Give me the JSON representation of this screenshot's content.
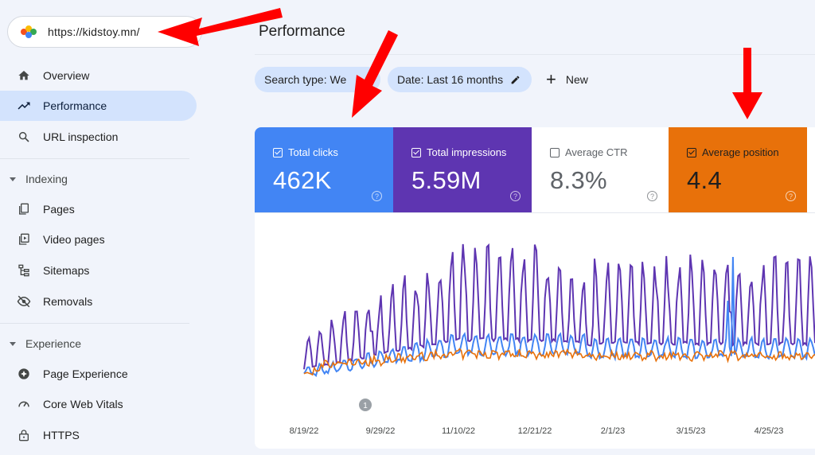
{
  "property": {
    "url": "https://kidstoy.mn/"
  },
  "sidebar": {
    "items": [
      {
        "label": "Overview",
        "icon": "home-icon",
        "active": false
      },
      {
        "label": "Performance",
        "icon": "trending-up-icon",
        "active": true
      },
      {
        "label": "URL inspection",
        "icon": "search-icon",
        "active": false
      }
    ],
    "indexing": {
      "title": "Indexing",
      "items": [
        {
          "label": "Pages",
          "icon": "pages-icon"
        },
        {
          "label": "Video pages",
          "icon": "video-pages-icon"
        },
        {
          "label": "Sitemaps",
          "icon": "sitemap-icon"
        },
        {
          "label": "Removals",
          "icon": "eye-off-icon"
        }
      ]
    },
    "experience": {
      "title": "Experience",
      "items": [
        {
          "label": "Page Experience",
          "icon": "page-experience-icon"
        },
        {
          "label": "Core Web Vitals",
          "icon": "speedometer-icon"
        },
        {
          "label": "HTTPS",
          "icon": "lock-icon"
        }
      ]
    }
  },
  "main": {
    "title": "Performance",
    "filters": {
      "search_type": "Search type: We",
      "date": "Date: Last 16 months",
      "new_label": "New"
    },
    "metrics": [
      {
        "label": "Total clicks",
        "value": "462K",
        "checked": true,
        "color": "#4285f4"
      },
      {
        "label": "Total impressions",
        "value": "5.59M",
        "checked": true,
        "color": "#5e35b1"
      },
      {
        "label": "Average CTR",
        "value": "8.3%",
        "checked": false,
        "color": "#ffffff"
      },
      {
        "label": "Average position",
        "value": "4.4",
        "checked": true,
        "color": "#e8710a"
      }
    ],
    "annotation_marker": "1"
  },
  "chart_data": {
    "type": "line",
    "x_ticks": [
      "8/19/22",
      "9/29/22",
      "11/10/22",
      "12/21/22",
      "2/1/23",
      "3/15/23",
      "4/25/23"
    ],
    "series": [
      {
        "color": "#5e35b1"
      },
      {
        "color": "#4285f4"
      },
      {
        "color": "#e8710a"
      }
    ],
    "grid": false
  },
  "colors": {
    "accent_active": "#d3e3fd",
    "arrow": "#ff0000"
  }
}
